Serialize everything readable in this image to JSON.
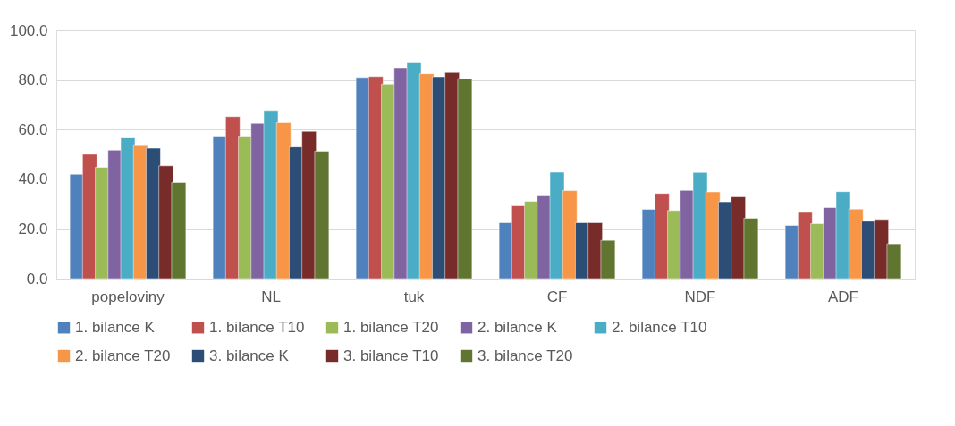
{
  "chart_data": {
    "type": "bar",
    "categories": [
      "popeloviny",
      "NL",
      "tuk",
      "CF",
      "NDF",
      "ADF"
    ],
    "series": [
      {
        "name": "1. bilance K",
        "color": "#4f81bd",
        "values": [
          42.0,
          57.4,
          81.0,
          22.5,
          27.9,
          21.4
        ]
      },
      {
        "name": "1. bilance T10",
        "color": "#c0504d",
        "values": [
          50.4,
          65.2,
          81.4,
          29.3,
          34.3,
          27.0
        ]
      },
      {
        "name": "1. bilance T20",
        "color": "#9bbb59",
        "values": [
          44.8,
          57.4,
          78.3,
          31.1,
          27.4,
          22.1
        ]
      },
      {
        "name": "2. bilance K",
        "color": "#8064a2",
        "values": [
          51.7,
          62.5,
          84.9,
          33.6,
          35.5,
          28.6
        ]
      },
      {
        "name": "2. bilance T10",
        "color": "#4bacc6",
        "values": [
          56.9,
          67.7,
          87.2,
          42.8,
          42.7,
          35.0
        ]
      },
      {
        "name": "2. bilance T20",
        "color": "#f79646",
        "values": [
          53.9,
          62.8,
          82.5,
          35.4,
          34.9,
          28.0
        ]
      },
      {
        "name": "3. bilance K",
        "color": "#2c4d75",
        "values": [
          52.5,
          53.0,
          81.3,
          22.5,
          30.9,
          23.1
        ]
      },
      {
        "name": "3. bilance T10",
        "color": "#772c2a",
        "values": [
          45.4,
          59.3,
          83.0,
          22.5,
          32.9,
          23.8
        ]
      },
      {
        "name": "3. bilance T20",
        "color": "#5f7530",
        "values": [
          38.7,
          51.3,
          80.5,
          15.4,
          24.3,
          14.0
        ]
      }
    ],
    "ylim": [
      0,
      100
    ],
    "yticks": [
      {
        "value": 0,
        "label": "0.0"
      },
      {
        "value": 20,
        "label": "20.0"
      },
      {
        "value": 40,
        "label": "40.0"
      },
      {
        "value": 60,
        "label": "60.0"
      },
      {
        "value": 80,
        "label": "80.0"
      },
      {
        "value": 100,
        "label": "100.0"
      }
    ],
    "grid": "y",
    "legend": "bottom"
  }
}
